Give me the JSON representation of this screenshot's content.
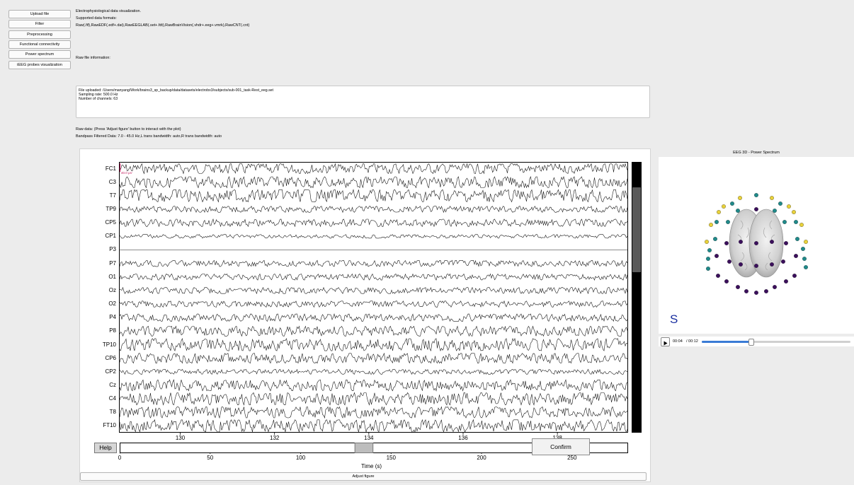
{
  "sidebar": {
    "buttons": [
      {
        "label": "Upload file"
      },
      {
        "label": "Filter"
      },
      {
        "label": "Preprocessing"
      },
      {
        "label": "Functional connectivity"
      },
      {
        "label": "Power spectrum"
      },
      {
        "label": "iEEG probes visualization"
      }
    ]
  },
  "header": {
    "line1": "Electrophysiological data visualization.",
    "line2": "Supported data formats:",
    "line3": "Raw(.fif),RawEDF(.edf+.dat),RawEEGLAB(.set+.fdt),RawBrainVision(.vhdr+.eeg+.vmrk),RawCNT(.cnt)",
    "raw_info_label": "Raw file information:"
  },
  "file_info": {
    "uploaded": "File uploaded: /Users/manyang/Work/brains3_sp_backup/data/datasets/electrobx3/subjects/sub-001_task-Rest_eeg.set",
    "sampling": "Sampling rate: 500.0 Hz",
    "channels": "Number of channels: 63"
  },
  "plot_header": {
    "raw_label": "Raw data: (Press 'Adjust figure' button to interact with the plot)",
    "bandpass_label": "Bandpass Filtered Data: 7.0 - 45.0 Hz,L trans bandwidth: auto,R trans bandwidth: auto"
  },
  "eeg_plot": {
    "channels": [
      "FC1",
      "C3",
      "T7",
      "TP9",
      "CP5",
      "CP1",
      "P3",
      "P7",
      "O1",
      "Oz",
      "O2",
      "P4",
      "P8",
      "TP10",
      "CP6",
      "CP2",
      "Cz",
      "C4",
      "T8",
      "FT10"
    ],
    "channel_amplitudes": [
      0.8,
      0.9,
      1.0,
      0.5,
      0.6,
      0.3,
      0.0,
      0.5,
      0.5,
      0.5,
      0.5,
      0.6,
      0.8,
      1.0,
      0.8,
      0.4,
      0.9,
      1.0,
      0.9,
      1.0
    ],
    "scale_label": "40.0 µV",
    "x_ticks": [
      "130",
      "132",
      "134",
      "136",
      "138"
    ],
    "x_tick_values": [
      130,
      132,
      134,
      136,
      138
    ],
    "x_range": [
      128.7,
      139.5
    ],
    "overview_ticks": [
      "0",
      "50",
      "100",
      "150",
      "200",
      "250"
    ],
    "overview_tick_values": [
      0,
      50,
      100,
      150,
      200,
      250
    ],
    "overview_range": [
      0,
      281
    ],
    "overview_window": [
      130,
      140
    ],
    "xlabel": "Time (s)",
    "trace_color": "#1a1a1a"
  },
  "controls": {
    "help_label": "Help",
    "confirm_label": "Confirm",
    "adjust_label": "Adjust figure"
  },
  "right": {
    "title": "EEG 3D - Power Spectrum",
    "orientation_letter": "S",
    "time_current": "00:04",
    "time_total": "/ 00:12",
    "progress": 0.33,
    "colors": {
      "yellow": "#e8d13a",
      "teal": "#1f8a8a",
      "purple": "#3b0f5c"
    }
  }
}
